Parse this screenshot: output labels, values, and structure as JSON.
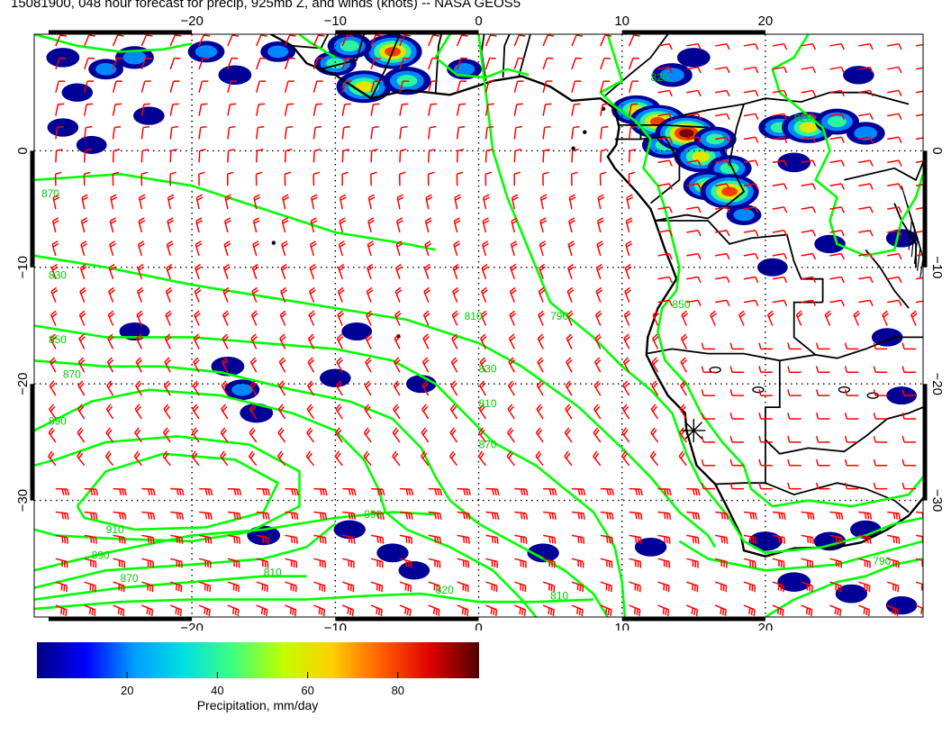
{
  "title": "15081900, 048 hour forecast for precip, 925mb Z, and winds (knots) -- NASA GEOS5",
  "map": {
    "lon_range": [
      -31,
      31
    ],
    "lat_range": [
      -40,
      10
    ],
    "lon_ticks": [
      -20,
      -10,
      0,
      10,
      20
    ],
    "lat_ticks": [
      0,
      -10,
      -20,
      -30
    ],
    "lon_tick_labels": [
      "−20",
      "−10",
      "0",
      "10",
      "20"
    ],
    "lat_tick_labels": [
      "0",
      "−10",
      "−20",
      "−30"
    ],
    "marker": {
      "lon": 15,
      "lat": -24
    },
    "colors": {
      "frame": "#000000",
      "barb": "#ff0000",
      "contour": "#00ff00",
      "contour_label": "#00cc00",
      "coast": "#000000"
    },
    "contour_labels": [
      {
        "text": "870",
        "lon": -30.5,
        "lat": -4
      },
      {
        "text": "830",
        "lon": -30,
        "lat": -11
      },
      {
        "text": "850",
        "lon": -30,
        "lat": -16.5
      },
      {
        "text": "870",
        "lon": -29,
        "lat": -19.5
      },
      {
        "text": "890",
        "lon": -30,
        "lat": -23.5
      },
      {
        "text": "910",
        "lon": -26,
        "lat": -32.8
      },
      {
        "text": "890",
        "lon": -27,
        "lat": -35
      },
      {
        "text": "870",
        "lon": -25,
        "lat": -37
      },
      {
        "text": "810",
        "lon": -15,
        "lat": -36.5
      },
      {
        "text": "890",
        "lon": -8,
        "lat": -31.5
      },
      {
        "text": "810",
        "lon": -1,
        "lat": -14.5
      },
      {
        "text": "790",
        "lon": 5,
        "lat": -14.5
      },
      {
        "text": "830",
        "lon": 0,
        "lat": -19
      },
      {
        "text": "810",
        "lon": 0,
        "lat": -22
      },
      {
        "text": "870",
        "lon": 0,
        "lat": -25.5
      },
      {
        "text": "820",
        "lon": -3,
        "lat": -38
      },
      {
        "text": "810",
        "lon": 5,
        "lat": -38.5
      },
      {
        "text": "850",
        "lon": 13.5,
        "lat": -13.5
      },
      {
        "text": "790",
        "lon": 27.5,
        "lat": -35.5
      },
      {
        "text": "820",
        "lon": 12,
        "lat": 6
      },
      {
        "text": "820",
        "lon": 22,
        "lat": 2.5
      }
    ],
    "precip_cells": [
      {
        "lon": -28,
        "lat": 5,
        "intensity": 10
      },
      {
        "lon": -26,
        "lat": 7,
        "intensity": 20
      },
      {
        "lon": -29,
        "lat": 8,
        "intensity": 15
      },
      {
        "lon": -24,
        "lat": 8,
        "intensity": 30
      },
      {
        "lon": -19,
        "lat": 8.5,
        "intensity": 25
      },
      {
        "lon": -17,
        "lat": 6.5,
        "intensity": 15
      },
      {
        "lon": -14,
        "lat": 8.5,
        "intensity": 20
      },
      {
        "lon": -10,
        "lat": 7.5,
        "intensity": 40
      },
      {
        "lon": -8,
        "lat": 5.5,
        "intensity": 75
      },
      {
        "lon": -6,
        "lat": 8.5,
        "intensity": 85
      },
      {
        "lon": -5,
        "lat": 6,
        "intensity": 55
      },
      {
        "lon": -9,
        "lat": 9,
        "intensity": 45
      },
      {
        "lon": -1,
        "lat": 7,
        "intensity": 20
      },
      {
        "lon": -29,
        "lat": 2,
        "intensity": 10
      },
      {
        "lon": -27,
        "lat": 0.5,
        "intensity": 8
      },
      {
        "lon": -23,
        "lat": 3,
        "intensity": 10
      },
      {
        "lon": 11,
        "lat": 3.5,
        "intensity": 60
      },
      {
        "lon": 12.5,
        "lat": 2.5,
        "intensity": 80
      },
      {
        "lon": 13,
        "lat": 0.5,
        "intensity": 50
      },
      {
        "lon": 14.5,
        "lat": 1.5,
        "intensity": 95
      },
      {
        "lon": 15.5,
        "lat": -0.5,
        "intensity": 70
      },
      {
        "lon": 16.5,
        "lat": 1,
        "intensity": 40
      },
      {
        "lon": 17.5,
        "lat": -1.5,
        "intensity": 45
      },
      {
        "lon": 16,
        "lat": -3,
        "intensity": 60
      },
      {
        "lon": 17.5,
        "lat": -3.5,
        "intensity": 85
      },
      {
        "lon": 18.5,
        "lat": -5.5,
        "intensity": 20
      },
      {
        "lon": 13.5,
        "lat": 6.5,
        "intensity": 35
      },
      {
        "lon": 15,
        "lat": 8,
        "intensity": 15
      },
      {
        "lon": 21,
        "lat": 2,
        "intensity": 40
      },
      {
        "lon": 23,
        "lat": 2,
        "intensity": 70
      },
      {
        "lon": 25,
        "lat": 2.5,
        "intensity": 45
      },
      {
        "lon": 27,
        "lat": 1.5,
        "intensity": 30
      },
      {
        "lon": 22,
        "lat": -1,
        "intensity": 15
      },
      {
        "lon": 26.5,
        "lat": 6.5,
        "intensity": 10
      },
      {
        "lon": 29.5,
        "lat": -7.5,
        "intensity": 10
      },
      {
        "lon": -17.5,
        "lat": -18.5,
        "intensity": 15
      },
      {
        "lon": -16.5,
        "lat": -20.5,
        "intensity": 20
      },
      {
        "lon": -15.5,
        "lat": -22.5,
        "intensity": 15
      },
      {
        "lon": -24,
        "lat": -15.5,
        "intensity": 8
      },
      {
        "lon": -10,
        "lat": -19.5,
        "intensity": 10
      },
      {
        "lon": -4,
        "lat": -20,
        "intensity": 8
      },
      {
        "lon": -8.5,
        "lat": -15.5,
        "intensity": 8
      },
      {
        "lon": -15,
        "lat": -33,
        "intensity": 15
      },
      {
        "lon": -9,
        "lat": -32.5,
        "intensity": 12
      },
      {
        "lon": -6,
        "lat": -34.5,
        "intensity": 12
      },
      {
        "lon": -4.5,
        "lat": -36,
        "intensity": 10
      },
      {
        "lon": 4.5,
        "lat": -34.5,
        "intensity": 12
      },
      {
        "lon": 12,
        "lat": -34,
        "intensity": 12
      },
      {
        "lon": 20,
        "lat": -33.5,
        "intensity": 15
      },
      {
        "lon": 24.5,
        "lat": -33.5,
        "intensity": 12
      },
      {
        "lon": 27,
        "lat": -32.5,
        "intensity": 10
      },
      {
        "lon": 22,
        "lat": -37,
        "intensity": 15
      },
      {
        "lon": 26,
        "lat": -38,
        "intensity": 12
      },
      {
        "lon": 29.5,
        "lat": -39,
        "intensity": 10
      },
      {
        "lon": 24.5,
        "lat": -8,
        "intensity": 10
      },
      {
        "lon": 20.5,
        "lat": -10,
        "intensity": 8
      },
      {
        "lon": 28.5,
        "lat": -16,
        "intensity": 10
      },
      {
        "lon": 29.5,
        "lat": -21,
        "intensity": 8
      }
    ]
  },
  "colorbar": {
    "title": "Precipitation, mm/day",
    "labels": [
      "20",
      "40",
      "60",
      "80"
    ],
    "values": [
      20,
      40,
      60,
      80
    ],
    "range": [
      0,
      98
    ],
    "stops": [
      "#000080",
      "#0000ff",
      "#00a0ff",
      "#00e0e0",
      "#40ff80",
      "#c0ff00",
      "#ffd000",
      "#ff6000",
      "#e00000",
      "#500000"
    ]
  }
}
